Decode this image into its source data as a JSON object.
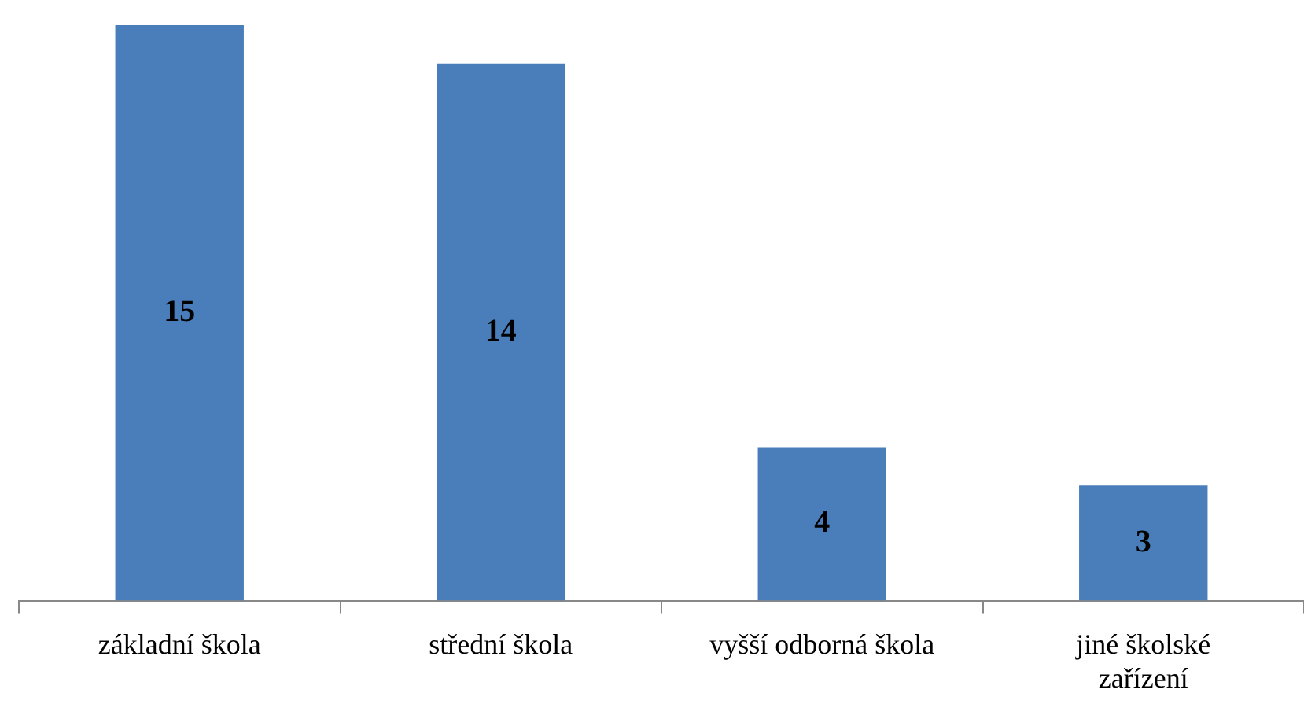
{
  "chart_data": {
    "type": "bar",
    "categories": [
      "základní škola",
      "střední škola",
      "vyšší odborná škola",
      "jiné školské zařízení"
    ],
    "values": [
      15,
      14,
      4,
      3
    ],
    "color": "#4a7ebb",
    "data_labels": true,
    "grid": false,
    "legend": false
  }
}
